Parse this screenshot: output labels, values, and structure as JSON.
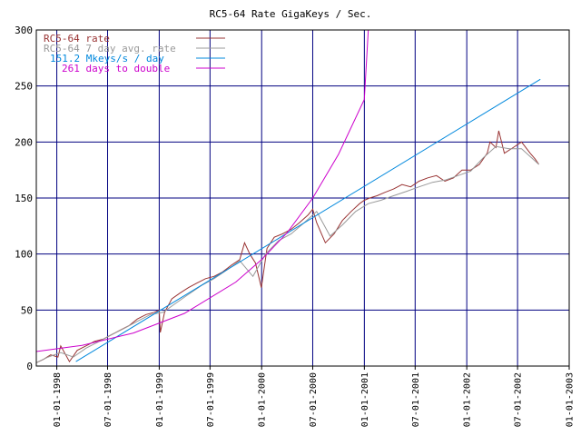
{
  "chart_data": {
    "type": "line",
    "title": "RC5-64 Rate GigaKeys / Sec.",
    "xlabel": "",
    "ylabel": "",
    "ylim": [
      0,
      300
    ],
    "xlim": [
      "1997-10-20",
      "2003-01-01"
    ],
    "grid": true,
    "legend_position": "top-left",
    "y_ticks": [
      0,
      50,
      100,
      150,
      200,
      250,
      300
    ],
    "x_ticks": [
      {
        "date": "1998-01-01",
        "label": "01-01-1998"
      },
      {
        "date": "1998-07-01",
        "label": "07-01-1998"
      },
      {
        "date": "1999-01-01",
        "label": "01-01-1999"
      },
      {
        "date": "1999-07-01",
        "label": "07-01-1999"
      },
      {
        "date": "2000-01-01",
        "label": "01-01-2000"
      },
      {
        "date": "2000-07-01",
        "label": "07-01-2000"
      },
      {
        "date": "2001-01-01",
        "label": "01-01-2001"
      },
      {
        "date": "2001-07-01",
        "label": "07-01-2001"
      },
      {
        "date": "2002-01-01",
        "label": "01-01-2002"
      },
      {
        "date": "2002-07-01",
        "label": "07-01-2002"
      },
      {
        "date": "2003-01-01",
        "label": "01-01-2003"
      }
    ],
    "colors": {
      "rate": "#993333",
      "avg": "#999999",
      "linear": "#0088dd",
      "doubling": "#cc00cc",
      "grid": "#000080",
      "frame": "#000000",
      "legend_text_rate": "#993333",
      "legend_text_avg": "#999999",
      "legend_text_linear": "#0088dd",
      "legend_text_doubling": "#cc00cc"
    },
    "series": [
      {
        "name": "RC5-64 rate",
        "key": "rate",
        "x": [
          "1997-10-20",
          "1997-11-15",
          "1997-12-10",
          "1998-01-05",
          "1998-01-15",
          "1998-02-15",
          "1998-03-15",
          "1998-04-15",
          "1998-05-15",
          "1998-06-15",
          "1998-07-15",
          "1998-08-15",
          "1998-09-15",
          "1998-10-15",
          "1998-11-15",
          "1998-12-15",
          "1999-01-01",
          "1999-01-05",
          "1999-01-20",
          "1999-02-15",
          "1999-03-15",
          "1999-04-15",
          "1999-05-15",
          "1999-06-15",
          "1999-07-15",
          "1999-08-15",
          "1999-09-15",
          "1999-10-15",
          "1999-11-01",
          "1999-11-20",
          "1999-12-10",
          "1999-12-31",
          "2000-01-20",
          "2000-02-15",
          "2000-03-15",
          "2000-04-15",
          "2000-05-15",
          "2000-06-15",
          "2000-07-01",
          "2000-07-15",
          "2000-08-15",
          "2000-09-15",
          "2000-10-15",
          "2000-11-15",
          "2000-12-15",
          "2001-01-01",
          "2001-01-20",
          "2001-02-15",
          "2001-03-15",
          "2001-04-15",
          "2001-05-15",
          "2001-06-15",
          "2001-07-15",
          "2001-08-15",
          "2001-09-15",
          "2001-10-15",
          "2001-11-15",
          "2001-12-15",
          "2002-01-15",
          "2002-02-15",
          "2002-03-15",
          "2002-03-25",
          "2002-04-15",
          "2002-04-25",
          "2002-05-15",
          "2002-06-15",
          "2002-07-15",
          "2002-08-15",
          "2002-09-01",
          "2002-09-15"
        ],
        "values": [
          3,
          6,
          10,
          8,
          18,
          4,
          14,
          18,
          22,
          24,
          28,
          32,
          36,
          42,
          46,
          48,
          50,
          30,
          48,
          60,
          65,
          70,
          74,
          78,
          80,
          84,
          90,
          95,
          110,
          100,
          92,
          70,
          105,
          115,
          118,
          122,
          128,
          135,
          140,
          128,
          110,
          118,
          130,
          138,
          145,
          148,
          150,
          152,
          155,
          158,
          162,
          160,
          165,
          168,
          170,
          165,
          168,
          175,
          175,
          180,
          190,
          200,
          195,
          210,
          190,
          195,
          200,
          190,
          185,
          180
        ]
      },
      {
        "name": "RC5-64 7 day avg. rate",
        "key": "avg",
        "x": [
          "1997-10-20",
          "1997-12-01",
          "1998-01-15",
          "1998-03-01",
          "1998-04-15",
          "1998-06-01",
          "1998-07-15",
          "1998-09-01",
          "1998-10-15",
          "1998-12-01",
          "1999-01-15",
          "1999-03-01",
          "1999-04-15",
          "1999-06-01",
          "1999-07-15",
          "1999-09-01",
          "1999-10-15",
          "1999-12-01",
          "2000-01-15",
          "2000-03-01",
          "2000-04-15",
          "2000-06-01",
          "2000-07-15",
          "2000-09-01",
          "2000-10-15",
          "2000-12-01",
          "2001-01-15",
          "2001-03-01",
          "2001-04-15",
          "2001-06-01",
          "2001-07-15",
          "2001-09-01",
          "2001-10-15",
          "2001-12-01",
          "2002-01-15",
          "2002-03-01",
          "2002-04-15",
          "2002-06-01",
          "2002-07-15",
          "2002-09-15"
        ],
        "values": [
          3,
          8,
          12,
          8,
          16,
          22,
          28,
          34,
          40,
          46,
          48,
          56,
          64,
          72,
          78,
          86,
          94,
          80,
          100,
          112,
          118,
          128,
          138,
          116,
          126,
          138,
          145,
          148,
          152,
          156,
          160,
          164,
          166,
          170,
          174,
          186,
          196,
          194,
          194,
          180
        ]
      },
      {
        "name": "151.2 Mkeys/s / day",
        "key": "linear",
        "x": [
          "1998-03-10",
          "2002-09-20"
        ],
        "values": [
          4,
          256
        ]
      },
      {
        "name": "261 days to double",
        "key": "doubling",
        "x": [
          "1997-10-20",
          "1998-04-01",
          "1998-10-01",
          "1999-04-01",
          "1999-10-01",
          "2000-01-01",
          "2000-04-01",
          "2000-07-01",
          "2000-10-01",
          "2001-01-01",
          "2001-01-15"
        ],
        "values": [
          13,
          18.5,
          29.5,
          47,
          75,
          95,
          119,
          150,
          189,
          238,
          300
        ]
      }
    ]
  }
}
